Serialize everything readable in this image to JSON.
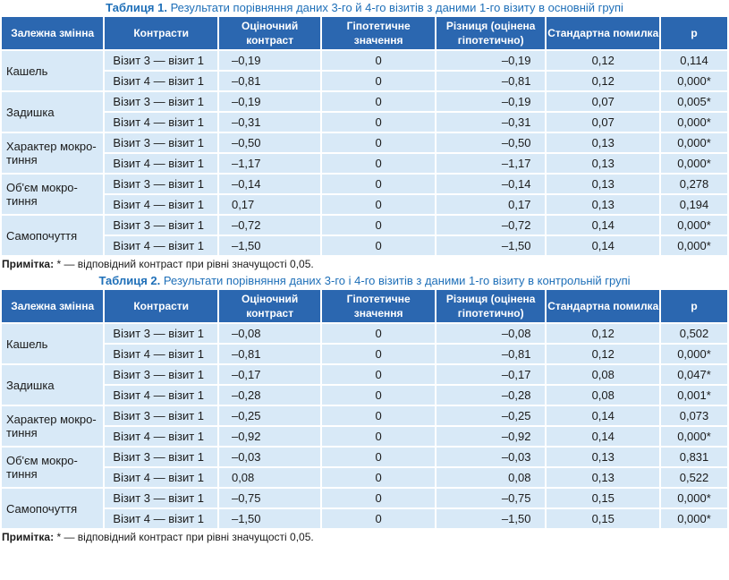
{
  "headers": [
    "Залежна змінна",
    "Контрасти",
    "Оціночний контраст",
    "Гіпотетичне значення",
    "Різниця (оцінена гіпотетично)",
    "Стандартна помилка",
    "p"
  ],
  "table1": {
    "number": "Таблиця 1.",
    "title": "Результати порівняння даних 3-го й 4-го візитів з даними 1-го візиту в основній групі",
    "groups": [
      {
        "variable": "Кашель",
        "rows": [
          {
            "contrast": "Візит 3 — візит 1",
            "estimate": "–0,19",
            "hypothetical": "0",
            "difference": "–0,19",
            "se": "0,12",
            "p": "0,114"
          },
          {
            "contrast": "Візит 4 — візит 1",
            "estimate": "–0,81",
            "hypothetical": "0",
            "difference": "–0,81",
            "se": "0,12",
            "p": "0,000*"
          }
        ]
      },
      {
        "variable": "Задишка",
        "rows": [
          {
            "contrast": "Візит 3 — візит 1",
            "estimate": "–0,19",
            "hypothetical": "0",
            "difference": "–0,19",
            "se": "0,07",
            "p": "0,005*"
          },
          {
            "contrast": "Візит 4 — візит 1",
            "estimate": "–0,31",
            "hypothetical": "0",
            "difference": "–0,31",
            "se": "0,07",
            "p": "0,000*"
          }
        ]
      },
      {
        "variable": "Характер мокро-тиння",
        "rows": [
          {
            "contrast": "Візит 3 — візит 1",
            "estimate": "–0,50",
            "hypothetical": "0",
            "difference": "–0,50",
            "se": "0,13",
            "p": "0,000*"
          },
          {
            "contrast": "Візит 4 — візит 1",
            "estimate": "–1,17",
            "hypothetical": "0",
            "difference": "–1,17",
            "se": "0,13",
            "p": "0,000*"
          }
        ]
      },
      {
        "variable": "Об'єм мокро-тиння",
        "rows": [
          {
            "contrast": "Візит 3 — візит 1",
            "estimate": "–0,14",
            "hypothetical": "0",
            "difference": "–0,14",
            "se": "0,13",
            "p": "0,278"
          },
          {
            "contrast": "Візит 4 — візит 1",
            "estimate": "0,17",
            "hypothetical": "0",
            "difference": "0,17",
            "se": "0,13",
            "p": "0,194"
          }
        ]
      },
      {
        "variable": "Самопочуття",
        "rows": [
          {
            "contrast": "Візит 3 — візит 1",
            "estimate": "–0,72",
            "hypothetical": "0",
            "difference": "–0,72",
            "se": "0,14",
            "p": "0,000*"
          },
          {
            "contrast": "Візит 4 — візит 1",
            "estimate": "–1,50",
            "hypothetical": "0",
            "difference": "–1,50",
            "se": "0,14",
            "p": "0,000*"
          }
        ]
      }
    ],
    "note_label": "Примітка:",
    "note_text": "* — відповідний контраст при рівні значущості 0,05."
  },
  "table2": {
    "number": "Таблиця 2.",
    "title": "Результати порівняння даних 3-го і 4-го візитів з даними 1-го візиту в контрольній групі",
    "groups": [
      {
        "variable": "Кашель",
        "rows": [
          {
            "contrast": "Візит 3 — візит 1",
            "estimate": "–0,08",
            "hypothetical": "0",
            "difference": "–0,08",
            "se": "0,12",
            "p": "0,502"
          },
          {
            "contrast": "Візит 4 — візит 1",
            "estimate": "–0,81",
            "hypothetical": "0",
            "difference": "–0,81",
            "se": "0,12",
            "p": "0,000*"
          }
        ]
      },
      {
        "variable": "Задишка",
        "rows": [
          {
            "contrast": "Візит 3 — візит 1",
            "estimate": "–0,17",
            "hypothetical": "0",
            "difference": "–0,17",
            "se": "0,08",
            "p": "0,047*"
          },
          {
            "contrast": "Візит 4 — візит 1",
            "estimate": "–0,28",
            "hypothetical": "0",
            "difference": "–0,28",
            "se": "0,08",
            "p": "0,001*"
          }
        ]
      },
      {
        "variable": "Характер мокро-тиння",
        "rows": [
          {
            "contrast": "Візит 3 — візит 1",
            "estimate": "–0,25",
            "hypothetical": "0",
            "difference": "–0,25",
            "se": "0,14",
            "p": "0,073"
          },
          {
            "contrast": "Візит 4 — візит 1",
            "estimate": "–0,92",
            "hypothetical": "0",
            "difference": "–0,92",
            "se": "0,14",
            "p": "0,000*"
          }
        ]
      },
      {
        "variable": "Об'єм мокро-тиння",
        "rows": [
          {
            "contrast": "Візит 3 — візит 1",
            "estimate": "–0,03",
            "hypothetical": "0",
            "difference": "–0,03",
            "se": "0,13",
            "p": "0,831"
          },
          {
            "contrast": "Візит 4 — візит 1",
            "estimate": "0,08",
            "hypothetical": "0",
            "difference": "0,08",
            "se": "0,13",
            "p": "0,522"
          }
        ]
      },
      {
        "variable": "Самопочуття",
        "rows": [
          {
            "contrast": "Візит 3 — візит 1",
            "estimate": "–0,75",
            "hypothetical": "0",
            "difference": "–0,75",
            "se": "0,15",
            "p": "0,000*"
          },
          {
            "contrast": "Візит 4 — візит 1",
            "estimate": "–1,50",
            "hypothetical": "0",
            "difference": "–1,50",
            "se": "0,15",
            "p": "0,000*"
          }
        ]
      }
    ],
    "note_label": "Примітка:",
    "note_text": "* — відповідний контраст при рівні значущості 0,05."
  }
}
